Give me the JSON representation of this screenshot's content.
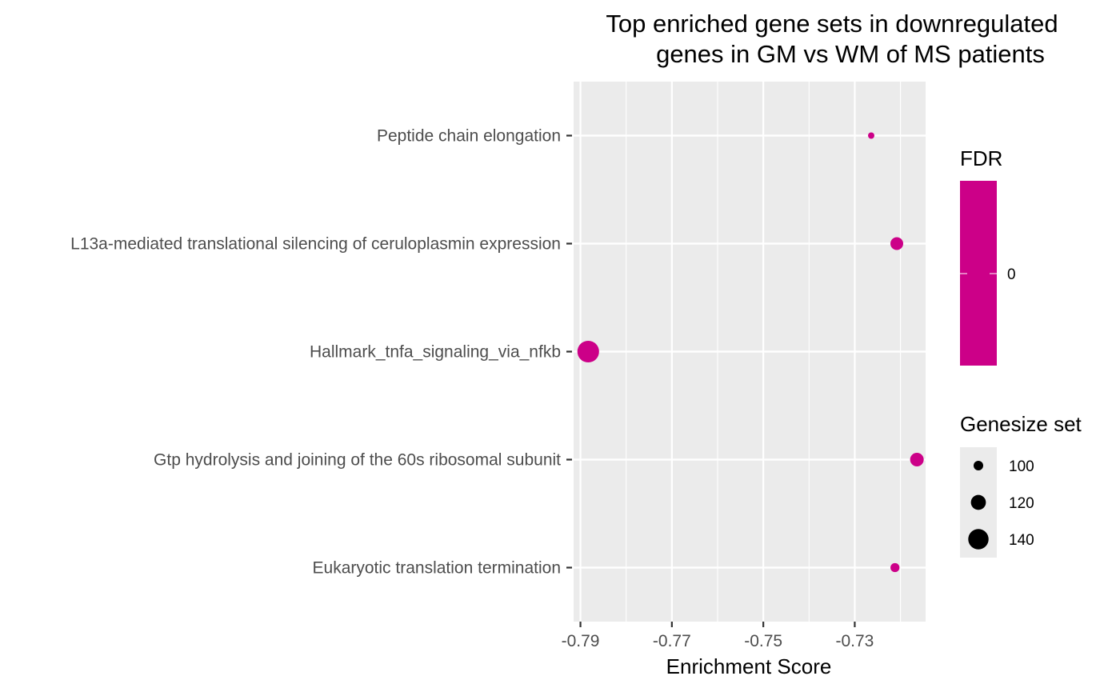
{
  "chart_data": {
    "type": "scatter",
    "title_lines": [
      "Top enriched gene sets in downregulated",
      "genes in GM vs WM of MS patients"
    ],
    "xlabel": "Enrichment Score",
    "ylabel": "",
    "xlim": [
      -0.7915,
      -0.7145
    ],
    "x_ticks": [
      -0.79,
      -0.77,
      -0.75,
      -0.73
    ],
    "x_tick_labels": [
      "-0.79",
      "-0.77",
      "-0.75",
      "-0.73"
    ],
    "categories": [
      "Peptide chain elongation",
      "L13a-mediated translational silencing of ceruloplasmin expression",
      "Hallmark_tnfa_signaling_via_nfkb",
      "Gtp hydrolysis and joining of the 60s ribosomal subunit",
      "Eukaryotic translation termination"
    ],
    "points": [
      {
        "category": "Peptide chain elongation",
        "x": -0.7264,
        "size": 88,
        "fdr": 0
      },
      {
        "category": "L13a-mediated translational silencing of ceruloplasmin expression",
        "x": -0.7208,
        "size": 112,
        "fdr": 0
      },
      {
        "category": "Hallmark_tnfa_signaling_via_nfkb",
        "x": -0.7883,
        "size": 145,
        "fdr": 0
      },
      {
        "category": "Gtp hydrolysis and joining of the 60s ribosomal subunit",
        "x": -0.7164,
        "size": 115,
        "fdr": 0
      },
      {
        "category": "Eukaryotic translation termination",
        "x": -0.7212,
        "size": 98,
        "fdr": 0
      }
    ],
    "grid": true,
    "point_color": "#CC0088",
    "panel_background": "#EBEBEB",
    "legend": {
      "placement": "right",
      "color_title": "FDR",
      "color_labels": [
        "0"
      ],
      "size_title": "Genesize set",
      "size_entries": [
        {
          "label": "100",
          "size": 100
        },
        {
          "label": "120",
          "size": 120
        },
        {
          "label": "140",
          "size": 140
        }
      ]
    }
  }
}
